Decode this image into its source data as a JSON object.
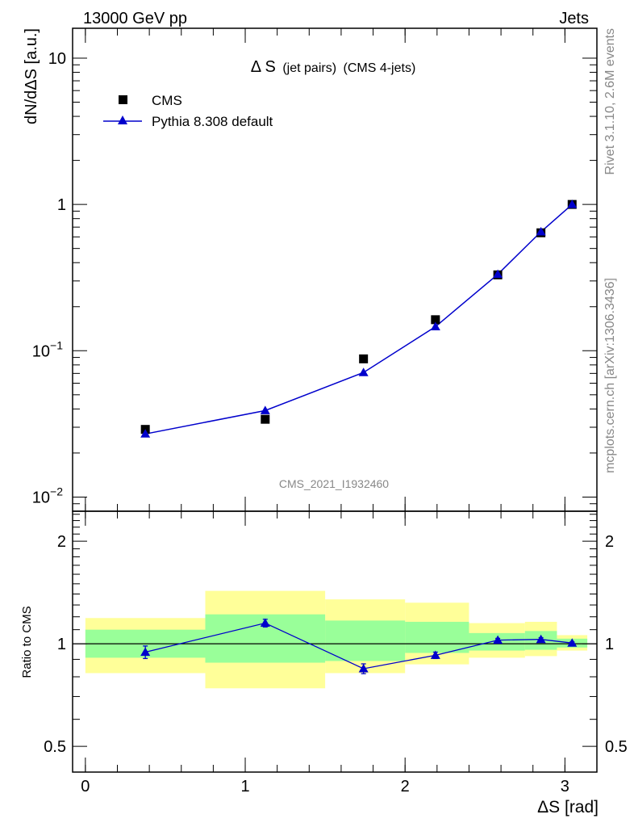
{
  "header": {
    "left": "13000 GeV pp",
    "right": "Jets"
  },
  "side": {
    "top": "Rivet 3.1.10,  2.6M events",
    "bottom": "mcplots.cern.ch [arXiv:1306.3436]"
  },
  "chart_data": [
    {
      "type": "scatter",
      "panel": "main",
      "title": "Δ S (jet pairs) (CMS 4-jets)",
      "title_main": "Δ S",
      "title_sub": "(jet pairs)",
      "title_tail": "(CMS 4-jets)",
      "ylabel": "dN/dΔS [a.u.]",
      "yscale": "log",
      "ylim": [
        0.008,
        16
      ],
      "xlim": [
        -0.08,
        3.2
      ],
      "y_ticks": [
        0.01,
        0.1,
        1,
        10
      ],
      "y_tick_labels": [
        {
          "base": "10",
          "exp": "−2"
        },
        {
          "base": "10",
          "exp": "−1"
        },
        {
          "base": "1",
          "exp": ""
        },
        {
          "base": "10",
          "exp": ""
        }
      ],
      "watermark": "CMS_2021_I1932460",
      "legend_position": "top-left",
      "series": [
        {
          "name": "CMS",
          "marker": "square",
          "color": "#000000",
          "x": [
            0.375,
            1.125,
            1.74,
            2.19,
            2.58,
            2.85,
            3.045
          ],
          "y": [
            0.029,
            0.034,
            0.088,
            0.163,
            0.33,
            0.64,
            1.0
          ]
        },
        {
          "name": "Pythia 8.308 default",
          "marker": "triangle",
          "color": "#0000cc",
          "x": [
            0.375,
            1.125,
            1.74,
            2.19,
            2.58,
            2.85,
            3.045
          ],
          "y": [
            0.027,
            0.039,
            0.071,
            0.146,
            0.333,
            0.65,
            1.0
          ]
        }
      ]
    },
    {
      "type": "line",
      "panel": "ratio",
      "ylabel": "Ratio to CMS",
      "xlabel": "ΔS [rad]",
      "yscale": "log",
      "ylim": [
        0.42,
        2.45
      ],
      "xlim": [
        -0.08,
        3.2
      ],
      "y_ticks": [
        0.5,
        1,
        2
      ],
      "y_tick_labels": [
        "0.5",
        "1",
        "2"
      ],
      "x_ticks": [
        0,
        1,
        2,
        3
      ],
      "x_tick_labels": [
        "0",
        "1",
        "2",
        "3"
      ],
      "reference_line": 1,
      "bands": [
        {
          "x0": 0.0,
          "x1": 0.75,
          "yellow": [
            0.82,
            1.19
          ],
          "green": [
            0.91,
            1.1
          ]
        },
        {
          "x0": 0.75,
          "x1": 1.5,
          "yellow": [
            0.74,
            1.43
          ],
          "green": [
            0.88,
            1.22
          ]
        },
        {
          "x0": 1.5,
          "x1": 2.0,
          "yellow": [
            0.82,
            1.35
          ],
          "green": [
            0.89,
            1.17
          ]
        },
        {
          "x0": 2.0,
          "x1": 2.4,
          "yellow": [
            0.87,
            1.32
          ],
          "green": [
            0.94,
            1.16
          ]
        },
        {
          "x0": 2.4,
          "x1": 2.75,
          "yellow": [
            0.91,
            1.15
          ],
          "green": [
            0.955,
            1.075
          ]
        },
        {
          "x0": 2.75,
          "x1": 2.95,
          "yellow": [
            0.92,
            1.16
          ],
          "green": [
            0.96,
            1.09
          ]
        },
        {
          "x0": 2.95,
          "x1": 3.14,
          "yellow": [
            0.955,
            1.06
          ],
          "green": [
            0.975,
            1.035
          ]
        }
      ],
      "series": [
        {
          "name": "Pythia 8.308 default",
          "color": "#0000cc",
          "x": [
            0.375,
            1.125,
            1.74,
            2.19,
            2.58,
            2.85,
            3.045
          ],
          "y": [
            0.945,
            1.15,
            0.845,
            0.925,
            1.025,
            1.03,
            1.005
          ],
          "err": [
            0.04,
            0.03,
            0.028,
            0.02,
            0.012,
            0.012,
            0.008
          ]
        }
      ]
    }
  ]
}
